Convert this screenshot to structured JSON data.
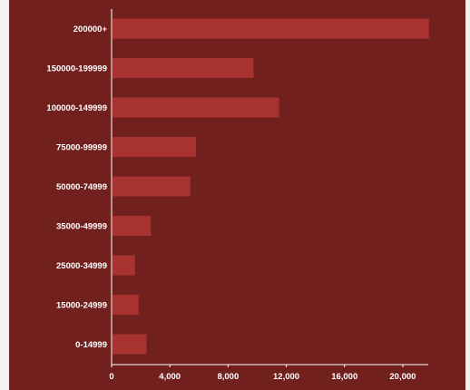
{
  "colors": {
    "background": "#72201e",
    "bar": "#a8322f",
    "axis": "#ffffff",
    "text": "#ffffff",
    "page": "#f2f2f2"
  },
  "chart_data": {
    "type": "bar",
    "orientation": "horizontal",
    "categories": [
      "200000+",
      "150000-199999",
      "100000-149999",
      "75000-99999",
      "50000-74999",
      "35000-49999",
      "25000-34999",
      "15000-24999",
      "0-14999"
    ],
    "values": [
      21800,
      9750,
      11500,
      5800,
      5400,
      2700,
      1600,
      1850,
      2400
    ],
    "xlim": [
      0,
      22000
    ],
    "xticks": [
      0,
      4000,
      8000,
      12000,
      16000,
      20000
    ],
    "xtick_labels": [
      "0",
      "4,000",
      "8,000",
      "12,000",
      "16,000",
      "20,000"
    ],
    "grid": false,
    "legend": "none"
  }
}
